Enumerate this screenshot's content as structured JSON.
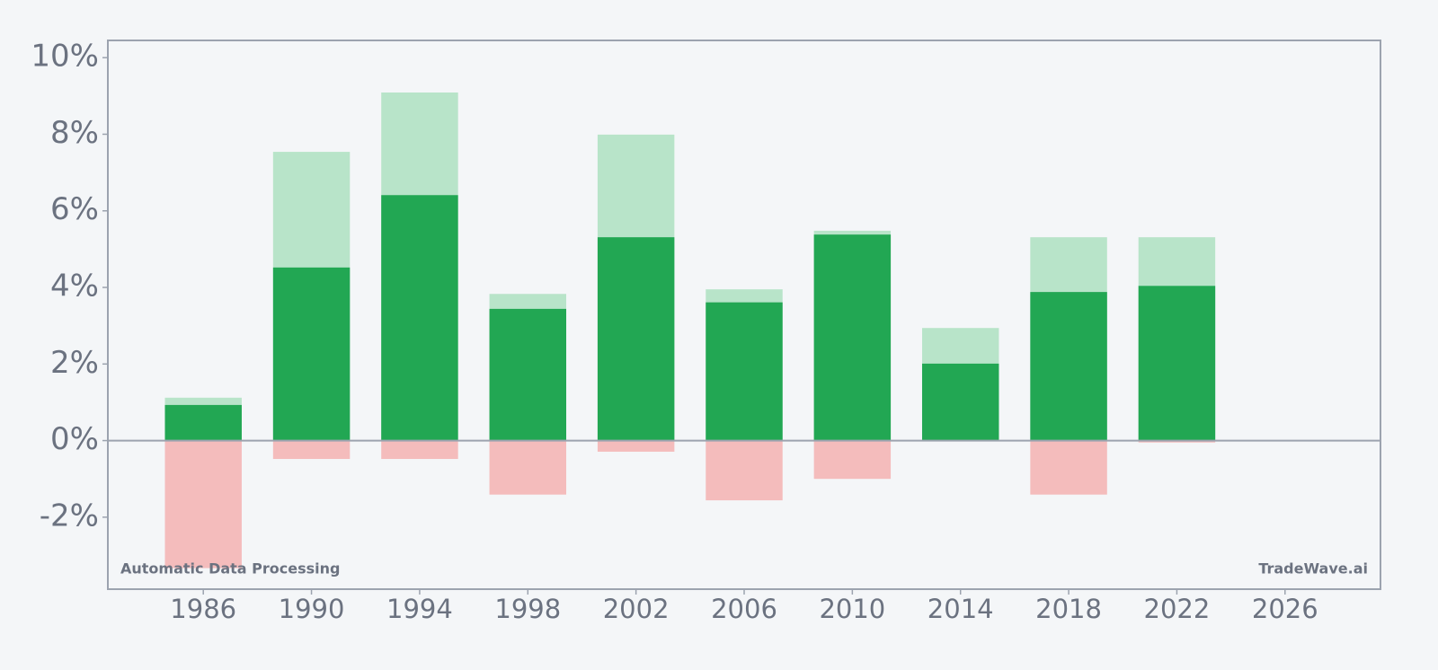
{
  "chart_data": {
    "type": "bar",
    "x": [
      1986,
      1990,
      1994,
      1998,
      2002,
      2006,
      2010,
      2014,
      2018,
      2022
    ],
    "series": [
      {
        "color": "#b8e4c9",
        "values": [
          1.12,
          7.54,
          9.09,
          3.83,
          7.99,
          3.95,
          5.48,
          2.94,
          5.31,
          5.31
        ]
      },
      {
        "color": "#22a753",
        "values": [
          0.93,
          4.52,
          6.41,
          3.44,
          5.31,
          3.61,
          5.38,
          2.01,
          3.88,
          4.04
        ]
      },
      {
        "color": "#f4bcbc",
        "values": [
          -3.33,
          -0.48,
          -0.48,
          -1.41,
          -0.29,
          -1.56,
          -1.0,
          0,
          -1.41,
          -0.05
        ]
      }
    ],
    "xlim": [
      1982.47,
      2029.53
    ],
    "xticks": [
      1986,
      1990,
      1994,
      1998,
      2002,
      2006,
      2010,
      2014,
      2018,
      2022,
      2026
    ],
    "ylim": [
      -3.88,
      10.45
    ],
    "yticks": [
      {
        "value": -2,
        "label": "-2%"
      },
      {
        "value": 0,
        "label": "0%"
      },
      {
        "value": 2,
        "label": "2%"
      },
      {
        "value": 4,
        "label": "4%"
      },
      {
        "value": 6,
        "label": "6%"
      },
      {
        "value": 8,
        "label": "8%"
      },
      {
        "value": 10,
        "label": "10%"
      }
    ],
    "annotations": [
      "Automatic Data Processing",
      "TradeWave.ai"
    ]
  }
}
